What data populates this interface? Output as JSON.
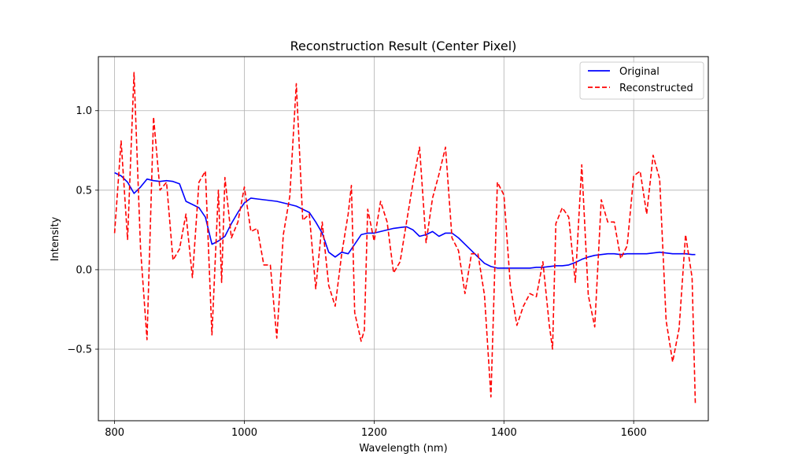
{
  "chart_data": {
    "type": "line",
    "title": "Reconstruction Result (Center Pixel)",
    "xlabel": "Wavelength (nm)",
    "ylabel": "Intensity",
    "xlim": [
      775,
      1715
    ],
    "ylim": [
      -0.95,
      1.34
    ],
    "x_ticks": [
      800,
      1000,
      1200,
      1400,
      1600
    ],
    "y_ticks": [
      -0.5,
      0.0,
      0.5,
      1.0
    ],
    "x_tick_labels": [
      "800",
      "1000",
      "1200",
      "1400",
      "1600"
    ],
    "y_tick_labels": [
      "−0.5",
      "0.0",
      "0.5",
      "1.0"
    ],
    "grid": true,
    "legend_position": "top-right",
    "series": [
      {
        "name": "Original",
        "color": "#0000ff",
        "style": "solid",
        "x": [
          800,
          810,
          820,
          830,
          840,
          850,
          860,
          870,
          880,
          890,
          900,
          910,
          920,
          930,
          940,
          950,
          960,
          970,
          980,
          990,
          1000,
          1010,
          1020,
          1030,
          1040,
          1050,
          1060,
          1070,
          1080,
          1090,
          1100,
          1110,
          1120,
          1130,
          1140,
          1150,
          1160,
          1170,
          1180,
          1190,
          1200,
          1210,
          1220,
          1230,
          1240,
          1250,
          1260,
          1270,
          1280,
          1290,
          1300,
          1310,
          1320,
          1330,
          1340,
          1350,
          1360,
          1370,
          1380,
          1390,
          1400,
          1410,
          1420,
          1430,
          1440,
          1450,
          1460,
          1470,
          1480,
          1490,
          1500,
          1510,
          1520,
          1530,
          1540,
          1550,
          1560,
          1570,
          1580,
          1590,
          1600,
          1610,
          1620,
          1630,
          1640,
          1650,
          1660,
          1670,
          1680,
          1690,
          1695
        ],
        "y": [
          0.61,
          0.59,
          0.55,
          0.48,
          0.52,
          0.57,
          0.56,
          0.555,
          0.56,
          0.555,
          0.54,
          0.43,
          0.41,
          0.39,
          0.33,
          0.16,
          0.18,
          0.21,
          0.29,
          0.36,
          0.42,
          0.45,
          0.445,
          0.44,
          0.435,
          0.43,
          0.42,
          0.41,
          0.4,
          0.38,
          0.36,
          0.3,
          0.23,
          0.11,
          0.08,
          0.11,
          0.1,
          0.16,
          0.22,
          0.23,
          0.23,
          0.24,
          0.25,
          0.26,
          0.265,
          0.27,
          0.25,
          0.21,
          0.22,
          0.24,
          0.21,
          0.23,
          0.23,
          0.2,
          0.16,
          0.12,
          0.08,
          0.04,
          0.02,
          0.01,
          0.01,
          0.01,
          0.01,
          0.01,
          0.01,
          0.015,
          0.015,
          0.02,
          0.025,
          0.025,
          0.03,
          0.045,
          0.065,
          0.08,
          0.09,
          0.095,
          0.1,
          0.1,
          0.095,
          0.1,
          0.1,
          0.1,
          0.1,
          0.105,
          0.11,
          0.105,
          0.1,
          0.1,
          0.1,
          0.095,
          0.095
        ]
      },
      {
        "name": "Reconstructed",
        "color": "#ff0000",
        "style": "dashed",
        "x": [
          800,
          810,
          820,
          830,
          840,
          850,
          860,
          870,
          880,
          890,
          900,
          910,
          920,
          930,
          940,
          950,
          955,
          960,
          965,
          970,
          980,
          990,
          1000,
          1010,
          1020,
          1030,
          1040,
          1050,
          1060,
          1070,
          1080,
          1090,
          1100,
          1110,
          1120,
          1130,
          1140,
          1150,
          1160,
          1165,
          1170,
          1180,
          1185,
          1190,
          1200,
          1210,
          1220,
          1230,
          1240,
          1250,
          1260,
          1270,
          1280,
          1290,
          1300,
          1310,
          1320,
          1330,
          1340,
          1350,
          1360,
          1370,
          1380,
          1390,
          1400,
          1410,
          1420,
          1430,
          1440,
          1450,
          1460,
          1470,
          1475,
          1480,
          1490,
          1500,
          1510,
          1520,
          1530,
          1540,
          1550,
          1560,
          1570,
          1580,
          1590,
          1600,
          1610,
          1620,
          1630,
          1640,
          1650,
          1660,
          1670,
          1680,
          1690,
          1695
        ],
        "y": [
          0.23,
          0.81,
          0.19,
          1.24,
          0.13,
          -0.44,
          0.96,
          0.5,
          0.55,
          0.06,
          0.13,
          0.35,
          -0.05,
          0.55,
          0.62,
          -0.41,
          0.05,
          0.5,
          -0.08,
          0.58,
          0.2,
          0.3,
          0.52,
          0.24,
          0.26,
          0.03,
          0.03,
          -0.43,
          0.22,
          0.46,
          1.17,
          0.31,
          0.35,
          -0.12,
          0.3,
          -0.1,
          -0.23,
          0.1,
          0.35,
          0.53,
          -0.27,
          -0.45,
          -0.38,
          0.38,
          0.18,
          0.43,
          0.3,
          -0.02,
          0.05,
          0.3,
          0.55,
          0.77,
          0.17,
          0.45,
          0.6,
          0.77,
          0.2,
          0.12,
          -0.15,
          0.1,
          0.1,
          -0.16,
          -0.8,
          0.55,
          0.47,
          -0.1,
          -0.35,
          -0.23,
          -0.15,
          -0.17,
          0.05,
          -0.35,
          -0.5,
          0.29,
          0.39,
          0.33,
          -0.08,
          0.66,
          -0.16,
          -0.36,
          0.44,
          0.3,
          0.3,
          0.07,
          0.15,
          0.59,
          0.62,
          0.35,
          0.72,
          0.57,
          -0.32,
          -0.58,
          -0.37,
          0.22,
          -0.05,
          -0.84
        ]
      }
    ]
  }
}
